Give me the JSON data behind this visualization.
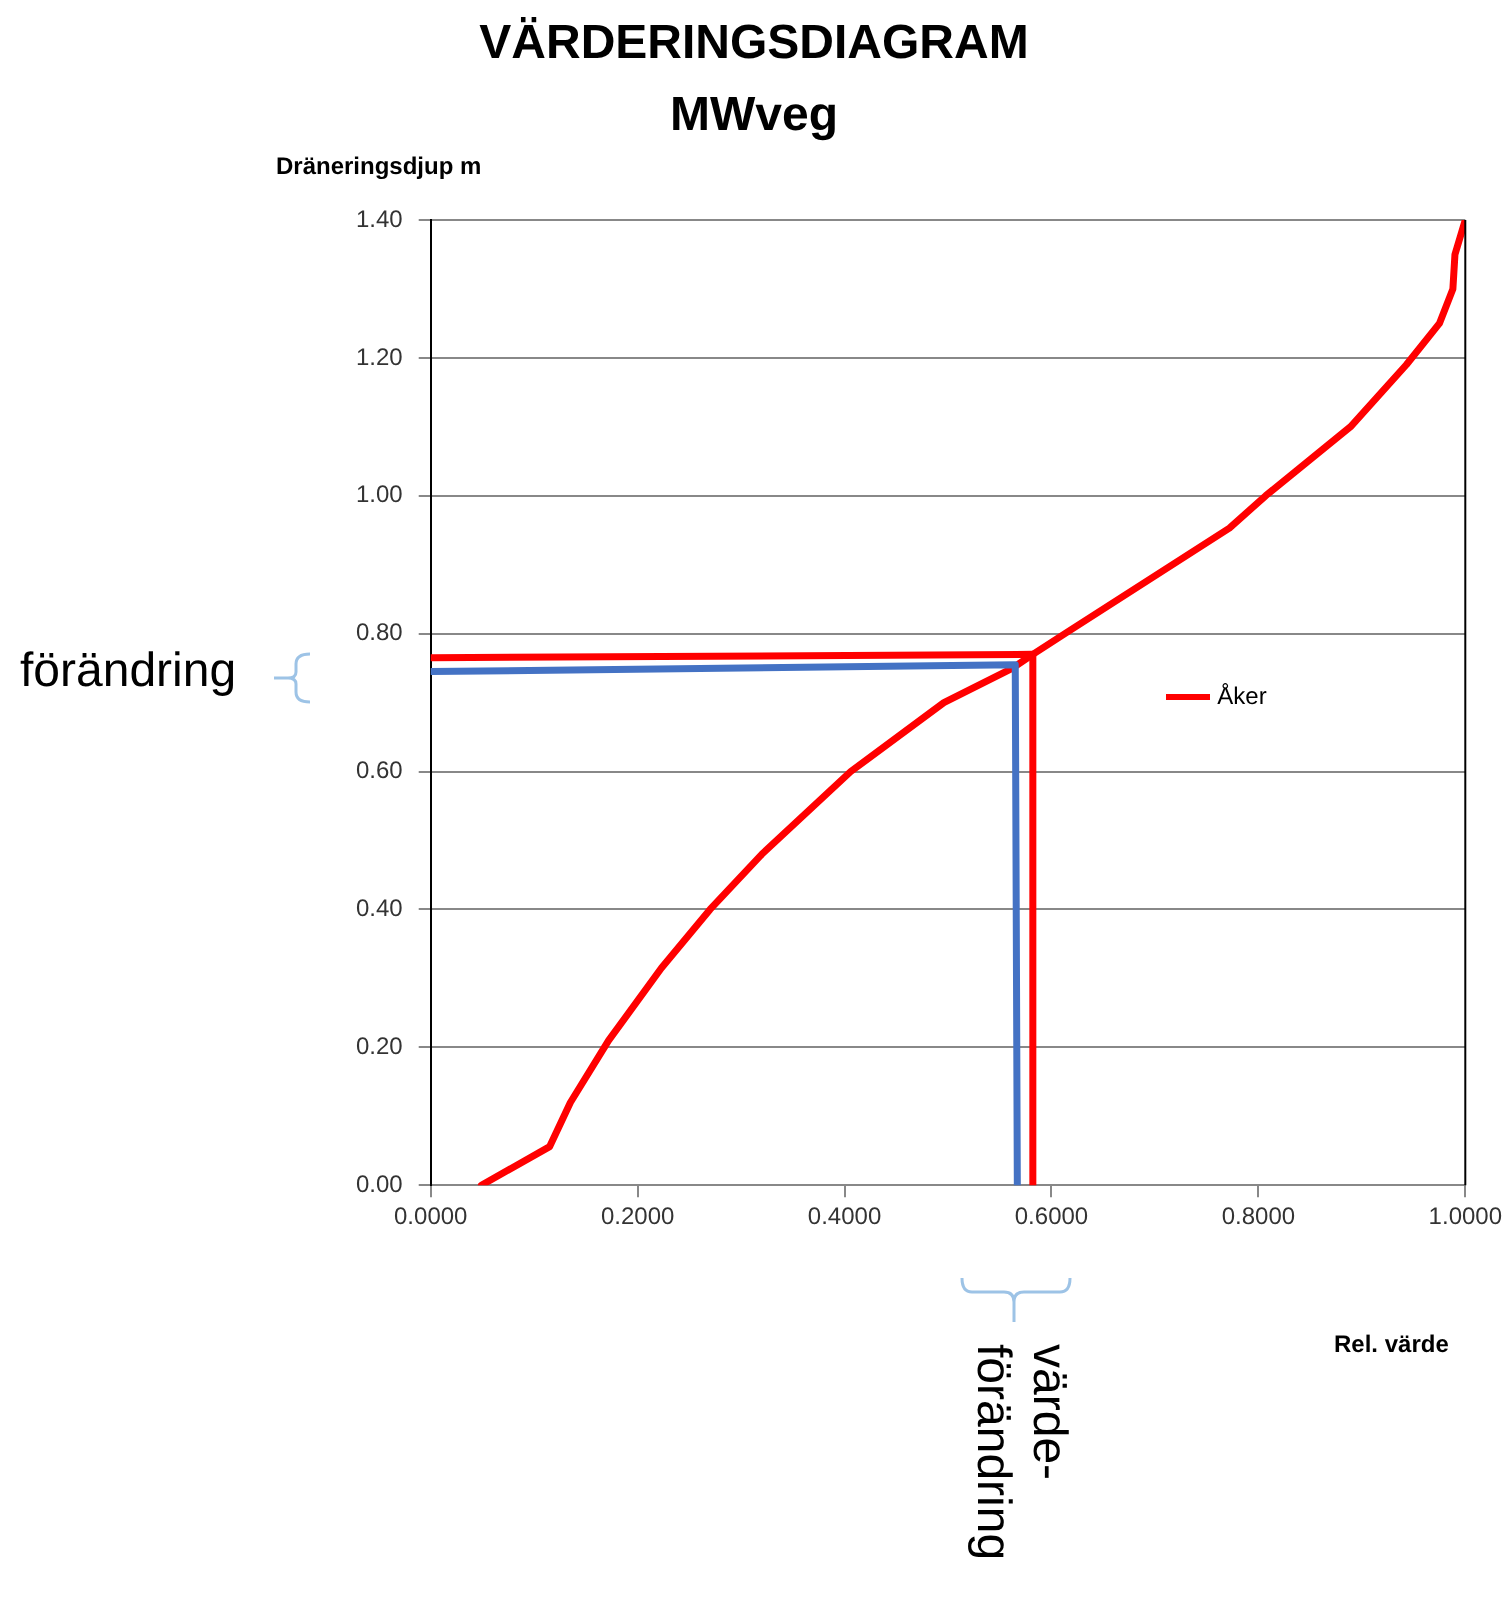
{
  "chart_data": {
    "type": "line",
    "title": "VÄRDERINGSDIAGRAM",
    "subtitle": "MWveg",
    "xlabel": "Rel. värde",
    "ylabel": "Dräneringsdjup m",
    "xlim": [
      0,
      1
    ],
    "ylim": [
      0,
      1.4
    ],
    "xticks": [
      {
        "value": 0,
        "label": "0.0000"
      },
      {
        "value": 0.2,
        "label": "0.2000"
      },
      {
        "value": 0.4,
        "label": "0.4000"
      },
      {
        "value": 0.6,
        "label": "0.6000"
      },
      {
        "value": 0.8,
        "label": "0.8000"
      },
      {
        "value": 1,
        "label": "1.0000"
      }
    ],
    "yticks": [
      {
        "value": 0,
        "label": "0.00"
      },
      {
        "value": 0.2,
        "label": "0.20"
      },
      {
        "value": 0.4,
        "label": "0.40"
      },
      {
        "value": 0.6,
        "label": "0.60"
      },
      {
        "value": 0.8,
        "label": "0.80"
      },
      {
        "value": 1,
        "label": "1.00"
      },
      {
        "value": 1.2,
        "label": "1.20"
      },
      {
        "value": 1.4,
        "label": "1.40"
      }
    ],
    "grid": "y",
    "legend": "right",
    "marker": "none",
    "series": [
      {
        "name": "Åker",
        "color": "#ff0000",
        "x": [
          0.049,
          0.115,
          0.135,
          0.172,
          0.223,
          0.27,
          0.32,
          0.406,
          0.496,
          0.5625,
          0.582,
          0.613,
          0.772,
          0.807,
          0.889,
          0.943,
          0.975,
          0.988,
          0.99,
          1.0
        ],
        "values": [
          0,
          0.056,
          0.12,
          0.21,
          0.315,
          0.4,
          0.48,
          0.6,
          0.7,
          0.75,
          0.77,
          0.8,
          0.953,
          1.0,
          1.1,
          1.19,
          1.25,
          1.3,
          1.35,
          1.4
        ]
      },
      {
        "color": "#ff0000",
        "x": [
          0,
          0.582,
          0.582
        ],
        "values": [
          0.765,
          0.77,
          0
        ]
      },
      {
        "color": "#4472c4",
        "x": [
          0,
          0.565,
          0.567
        ],
        "values": [
          0.745,
          0.755,
          0
        ]
      }
    ],
    "annotations": [
      "förändring",
      "värde-förändring"
    ]
  }
}
